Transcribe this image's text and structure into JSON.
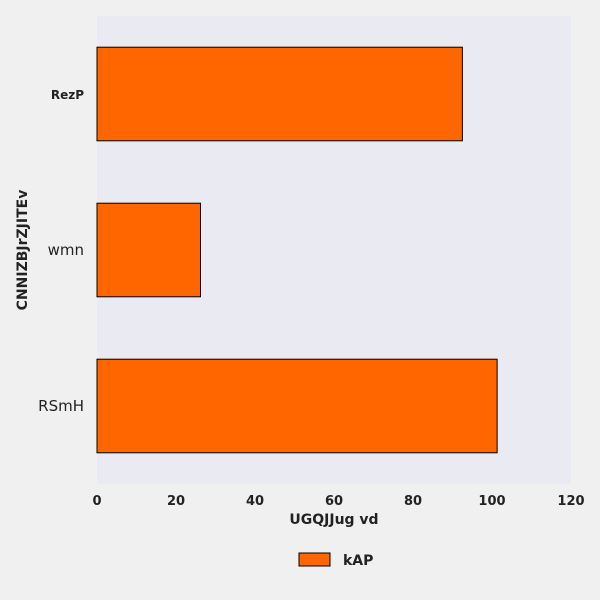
{
  "chart_data": {
    "type": "bar",
    "orientation": "horizontal",
    "categories": [
      "RezP",
      "wmn",
      "RSmH"
    ],
    "series": [
      {
        "name": "kAP",
        "values": [
          92.5,
          26.2,
          101.3
        ],
        "color": "#ff6600"
      }
    ],
    "xlabel": "UGQJJug vd",
    "ylabel": "CNNIZBJrZJITEv",
    "xlim": [
      0,
      120
    ],
    "xticks": [
      "0",
      "20",
      "40",
      "60",
      "80",
      "100",
      "120"
    ],
    "grid": false,
    "legend": "bottom-center",
    "plot_background": "#eaeaf2"
  }
}
